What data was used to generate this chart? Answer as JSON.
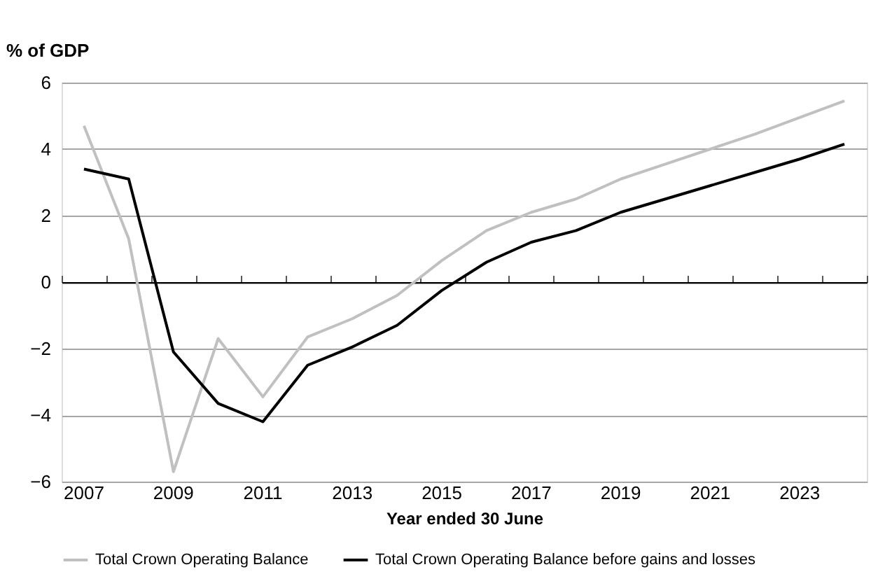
{
  "chart_data": {
    "type": "line",
    "xlabel": "Year ended 30 June",
    "ylabel": "% of GDP",
    "categories": [
      "2007",
      null,
      "2009",
      null,
      "2011",
      null,
      "2013",
      null,
      "2015",
      null,
      "2017",
      null,
      "2019",
      null,
      "2021",
      null,
      "2023",
      null
    ],
    "series": [
      {
        "name": "Total Crown Operating Balance",
        "color": "#c0c0c0",
        "values": [
          4.7,
          1.3,
          -5.7,
          -1.7,
          -3.45,
          -1.65,
          -1.1,
          -0.4,
          0.65,
          1.55,
          2.1,
          2.5,
          3.1,
          3.55,
          4.0,
          4.45,
          4.95,
          5.45
        ]
      },
      {
        "name": "Total Crown Operating Balance before gains and losses",
        "color": "#000000",
        "values": [
          3.4,
          3.1,
          -2.1,
          -3.65,
          -4.2,
          -2.5,
          -1.95,
          -1.3,
          -0.25,
          0.6,
          1.2,
          1.55,
          2.1,
          2.5,
          2.9,
          3.3,
          3.7,
          4.15
        ]
      }
    ],
    "ylim": [
      -6,
      6
    ],
    "yticks": [
      -6,
      -4,
      -2,
      0,
      2,
      4,
      6
    ],
    "grid": "y",
    "legend": "bottom"
  }
}
